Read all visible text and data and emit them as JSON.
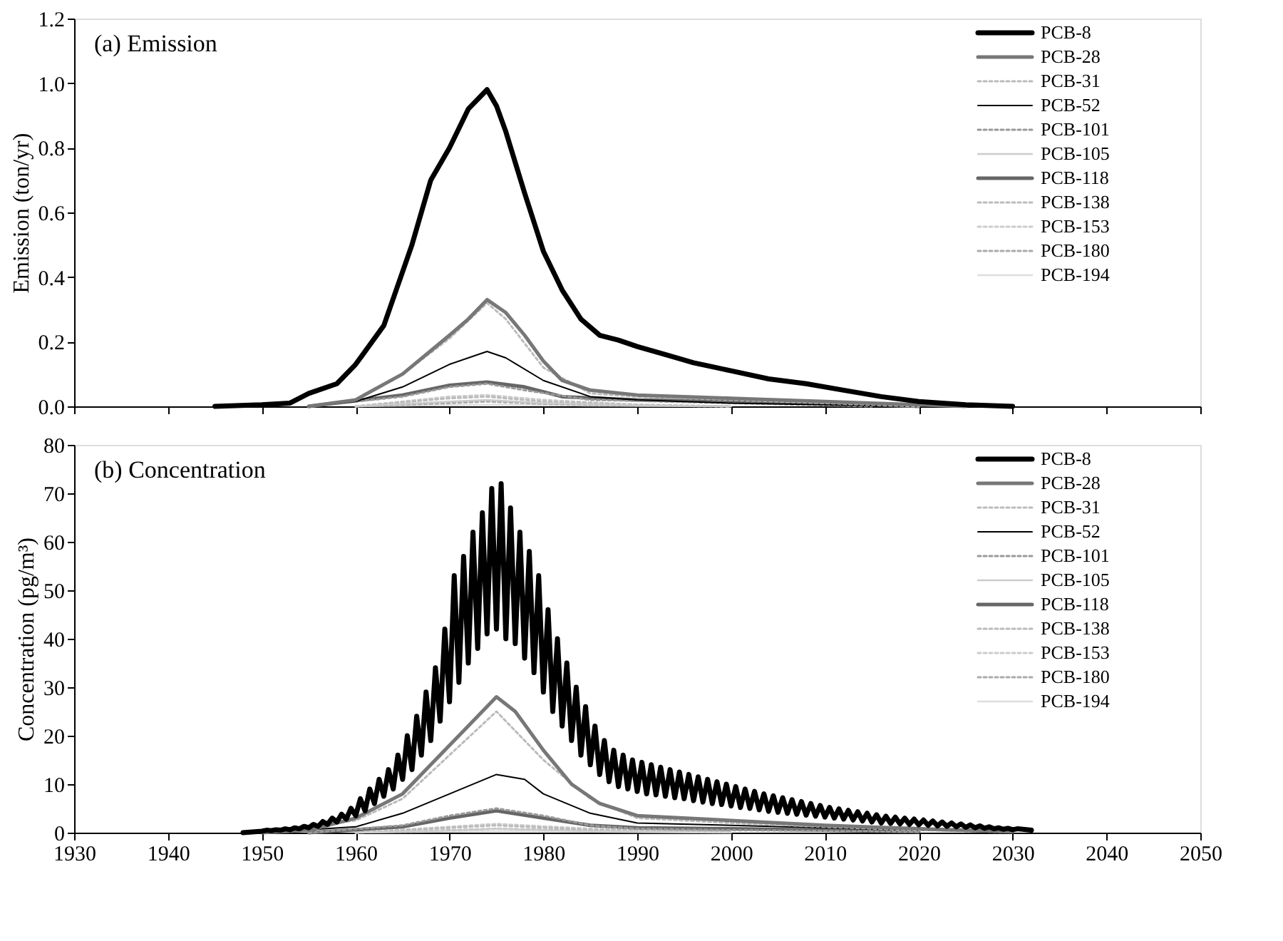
{
  "chart_data": [
    {
      "type": "line",
      "title": "(a) Emission",
      "ylabel": "Emission (ton/yr)",
      "xlim": [
        1930,
        2050
      ],
      "xticks": [
        1930,
        1940,
        1950,
        1960,
        1970,
        1980,
        1990,
        2000,
        2010,
        2020,
        2030,
        2040,
        2050
      ],
      "ylim": [
        0,
        1.2
      ],
      "yticks": [
        {
          "value": 0,
          "label": "0.0"
        },
        {
          "value": 0.2,
          "label": "0.2"
        },
        {
          "value": 0.4,
          "label": "0.4"
        },
        {
          "value": 0.6,
          "label": "0.6"
        },
        {
          "value": 0.8,
          "label": "0.8"
        },
        {
          "value": 1,
          "label": "1.0"
        },
        {
          "value": 1.2,
          "label": "1.2"
        }
      ],
      "tick_labels": "y",
      "legend": "top right",
      "series": [
        {
          "name": "PCB-8",
          "color": "#000000",
          "line_style": "solid",
          "x": [
            1945,
            1950,
            1953,
            1955,
            1958,
            1960,
            1963,
            1966,
            1968,
            1970,
            1972,
            1974,
            1975,
            1976,
            1978,
            1980,
            1982,
            1984,
            1986,
            1988,
            1990,
            1993,
            1996,
            2000,
            2004,
            2008,
            2012,
            2016,
            2020,
            2025,
            2030
          ],
          "values": [
            0,
            0.005,
            0.01,
            0.04,
            0.07,
            0.13,
            0.25,
            0.5,
            0.7,
            0.8,
            0.92,
            0.98,
            0.93,
            0.85,
            0.66,
            0.48,
            0.36,
            0.27,
            0.22,
            0.205,
            0.185,
            0.16,
            0.135,
            0.11,
            0.085,
            0.07,
            0.05,
            0.03,
            0.015,
            0.005,
            0
          ]
        },
        {
          "name": "PCB-28",
          "color": "#777777",
          "line_style": "solid",
          "x": [
            1955,
            1960,
            1965,
            1970,
            1972,
            1974,
            1976,
            1978,
            1980,
            1982,
            1985,
            1990,
            2000,
            2010,
            2020,
            2025
          ],
          "values": [
            0,
            0.02,
            0.1,
            0.22,
            0.27,
            0.33,
            0.29,
            0.22,
            0.14,
            0.08,
            0.05,
            0.035,
            0.025,
            0.015,
            0.005,
            0
          ]
        },
        {
          "name": "PCB-31",
          "color": "#bbbbbb",
          "line_style": "dotted",
          "x": [
            1955,
            1960,
            1965,
            1970,
            1974,
            1976,
            1980,
            1985,
            1990,
            2000,
            2010,
            2020
          ],
          "values": [
            0,
            0.02,
            0.1,
            0.21,
            0.32,
            0.27,
            0.12,
            0.04,
            0.03,
            0.02,
            0.01,
            0
          ]
        },
        {
          "name": "PCB-52",
          "color": "#000000",
          "line_style": "solid",
          "x": [
            1955,
            1960,
            1965,
            1970,
            1974,
            1976,
            1980,
            1985,
            1990,
            2000,
            2010,
            2020
          ],
          "values": [
            0,
            0.015,
            0.06,
            0.13,
            0.17,
            0.15,
            0.08,
            0.03,
            0.02,
            0.01,
            0.005,
            0
          ]
        },
        {
          "name": "PCB-101",
          "color": "#999999",
          "line_style": "dotted",
          "x": [
            1955,
            1965,
            1970,
            1974,
            1978,
            1985,
            2000,
            2015
          ],
          "values": [
            0,
            0.03,
            0.06,
            0.07,
            0.05,
            0.02,
            0.01,
            0
          ]
        },
        {
          "name": "PCB-105",
          "color": "#cccccc",
          "line_style": "solid",
          "x": [
            1960,
            1970,
            1974,
            1980,
            1990,
            2000
          ],
          "values": [
            0,
            0.015,
            0.02,
            0.01,
            0.003,
            0
          ]
        },
        {
          "name": "PCB-118",
          "color": "#666666",
          "line_style": "solid",
          "x": [
            1955,
            1965,
            1970,
            1974,
            1978,
            1982,
            1990,
            2000,
            2010,
            2020
          ],
          "values": [
            0,
            0.035,
            0.065,
            0.075,
            0.06,
            0.03,
            0.02,
            0.015,
            0.01,
            0
          ]
        },
        {
          "name": "PCB-138",
          "color": "#bbbbbb",
          "line_style": "dotted",
          "x": [
            1960,
            1970,
            1974,
            1980,
            1990,
            2000
          ],
          "values": [
            0,
            0.025,
            0.03,
            0.015,
            0.005,
            0
          ]
        },
        {
          "name": "PCB-153",
          "color": "#cccccc",
          "line_style": "dotted",
          "x": [
            1960,
            1970,
            1974,
            1980,
            1990,
            2000
          ],
          "values": [
            0,
            0.03,
            0.035,
            0.02,
            0.005,
            0
          ]
        },
        {
          "name": "PCB-180",
          "color": "#aaaaaa",
          "line_style": "dotted",
          "x": [
            1960,
            1970,
            1974,
            1980,
            1990,
            2000
          ],
          "values": [
            0,
            0.01,
            0.015,
            0.008,
            0.002,
            0
          ]
        },
        {
          "name": "PCB-194",
          "color": "#dddddd",
          "line_style": "solid",
          "x": [
            1960,
            1970,
            1975,
            1985,
            2000
          ],
          "values": [
            0,
            0.004,
            0.005,
            0.002,
            0
          ]
        }
      ]
    },
    {
      "type": "line",
      "title": "(b) Concentration",
      "ylabel": "Concentration (pg/m³)",
      "xlim": [
        1930,
        2050
      ],
      "xticks": [
        {
          "value": 1930,
          "label": "1930"
        },
        {
          "value": 1940,
          "label": "1940"
        },
        {
          "value": 1950,
          "label": "1950"
        },
        {
          "value": 1960,
          "label": "1960"
        },
        {
          "value": 1970,
          "label": "1970"
        },
        {
          "value": 1980,
          "label": "1980"
        },
        {
          "value": 1990,
          "label": "1990"
        },
        {
          "value": 2000,
          "label": "2000"
        },
        {
          "value": 2010,
          "label": "2010"
        },
        {
          "value": 2020,
          "label": "2020"
        },
        {
          "value": 2030,
          "label": "2030"
        },
        {
          "value": 2040,
          "label": "2040"
        },
        {
          "value": 2050,
          "label": "2050"
        }
      ],
      "ylim": [
        0,
        80
      ],
      "yticks": [
        0,
        10,
        20,
        30,
        40,
        50,
        60,
        70,
        80
      ],
      "legend": "top right",
      "series": [
        {
          "name": "PCB-8",
          "color": "#000000",
          "line_style": "solid",
          "x": [
            1948,
            1950,
            1950.5,
            1951,
            1951.5,
            1952,
            1952.5,
            1953,
            1953.5,
            1954,
            1954.5,
            1955,
            1955.5,
            1956,
            1956.5,
            1957,
            1957.5,
            1958,
            1958.5,
            1959,
            1959.5,
            1960,
            1960.5,
            1961,
            1961.5,
            1962,
            1962.5,
            1963,
            1963.5,
            1964,
            1964.5,
            1965,
            1965.5,
            1966,
            1966.5,
            1967,
            1967.5,
            1968,
            1968.5,
            1969,
            1969.5,
            1970,
            1970.5,
            1971,
            1971.5,
            1972,
            1972.5,
            1973,
            1973.5,
            1974,
            1974.5,
            1975,
            1975.5,
            1976,
            1976.5,
            1977,
            1977.5,
            1978,
            1978.5,
            1979,
            1979.5,
            1980,
            1980.5,
            1981,
            1981.5,
            1982,
            1982.5,
            1983,
            1983.5,
            1984,
            1984.5,
            1985,
            1985.5,
            1986,
            1986.5,
            1987,
            1987.5,
            1988,
            1988.5,
            1989,
            1989.5,
            1990,
            1990.5,
            1991,
            1991.5,
            1992,
            1992.5,
            1993,
            1993.5,
            1994,
            1994.5,
            1995,
            1995.5,
            1996,
            1996.5,
            1997,
            1997.5,
            1998,
            1998.5,
            1999,
            1999.5,
            2000,
            2000.5,
            2001,
            2001.5,
            2002,
            2002.5,
            2003,
            2003.5,
            2004,
            2004.5,
            2005,
            2005.5,
            2006,
            2006.5,
            2007,
            2007.5,
            2008,
            2008.5,
            2009,
            2009.5,
            2010,
            2010.5,
            2011,
            2011.5,
            2012,
            2012.5,
            2013,
            2013.5,
            2014,
            2014.5,
            2015,
            2015.5,
            2016,
            2016.5,
            2017,
            2017.5,
            2018,
            2018.5,
            2019,
            2019.5,
            2020,
            2020.5,
            2021,
            2021.5,
            2022,
            2022.5,
            2023,
            2023.5,
            2024,
            2024.5,
            2025,
            2025.5,
            2026,
            2026.5,
            2027,
            2027.5,
            2028,
            2028.5,
            2029,
            2029.5,
            2030,
            2030.5,
            2032
          ],
          "values": [
            0,
            0.3,
            0.5,
            0.4,
            0.6,
            0.5,
            0.8,
            0.6,
            1,
            0.8,
            1.3,
            1,
            1.7,
            1.3,
            2.3,
            1.7,
            3,
            2.2,
            3.8,
            2.8,
            5,
            3.5,
            7,
            4.5,
            9,
            6,
            11,
            7.5,
            13,
            9,
            16,
            11,
            20,
            13,
            24,
            16,
            29,
            19,
            34,
            23,
            42,
            27,
            53,
            31,
            57,
            35,
            62,
            38,
            66,
            41,
            71,
            42,
            72,
            40,
            67,
            39,
            62,
            36,
            58,
            33,
            53,
            29,
            46,
            25,
            40,
            22,
            35,
            19,
            30,
            16,
            26,
            14,
            22,
            12,
            19,
            10.5,
            17,
            9.5,
            16,
            9,
            15,
            8.5,
            14.5,
            8,
            14,
            7.8,
            13.5,
            7.5,
            13,
            7.2,
            12.5,
            7,
            12,
            6.6,
            11.5,
            6.3,
            11,
            6,
            10.5,
            5.8,
            10,
            5.5,
            9.5,
            5.2,
            9,
            5,
            8.5,
            4.7,
            8,
            4.4,
            7.6,
            4.2,
            7.2,
            4,
            6.8,
            3.8,
            6.4,
            3.6,
            6,
            3.4,
            5.6,
            3.2,
            5.2,
            3,
            4.9,
            2.8,
            4.6,
            2.6,
            4.3,
            2.4,
            4,
            2.2,
            3.7,
            2,
            3.4,
            1.9,
            3.2,
            1.8,
            3,
            1.7,
            2.8,
            1.6,
            2.6,
            1.5,
            2.4,
            1.4,
            2.2,
            1.3,
            2,
            1.2,
            1.8,
            1.1,
            1.6,
            1,
            1.4,
            0.9,
            1.2,
            0.8,
            1,
            0.7,
            0.9,
            0.6,
            0.8,
            0.5
          ]
        },
        {
          "name": "PCB-28",
          "color": "#777777",
          "line_style": "solid",
          "x": [
            1950,
            1955,
            1960,
            1965,
            1970,
            1973,
            1975,
            1977,
            1980,
            1983,
            1986,
            1990,
            2000,
            2010,
            2020,
            2030
          ],
          "values": [
            0,
            0.5,
            3,
            8,
            18,
            24,
            28,
            25,
            17,
            10,
            6,
            3.5,
            2.5,
            1.5,
            0.8,
            0.2
          ]
        },
        {
          "name": "PCB-31",
          "color": "#bbbbbb",
          "line_style": "dotted",
          "x": [
            1950,
            1960,
            1965,
            1970,
            1975,
            1980,
            1985,
            1990,
            2000,
            2010,
            2020,
            2030
          ],
          "values": [
            0,
            2.5,
            7,
            16,
            25,
            15,
            7,
            3,
            2,
            1.2,
            0.5,
            0.1
          ]
        },
        {
          "name": "PCB-52",
          "color": "#000000",
          "line_style": "solid",
          "x": [
            1950,
            1960,
            1965,
            1970,
            1975,
            1978,
            1980,
            1985,
            1990,
            2000,
            2010,
            2020,
            2030
          ],
          "values": [
            0,
            1.2,
            4,
            8,
            12,
            11,
            8,
            4,
            2,
            1.5,
            1,
            0.5,
            0.1
          ]
        },
        {
          "name": "PCB-101",
          "color": "#999999",
          "line_style": "dotted",
          "x": [
            1955,
            1965,
            1970,
            1975,
            1980,
            1985,
            1990,
            2000,
            2020
          ],
          "values": [
            0,
            1.5,
            3.5,
            5,
            3.5,
            1.5,
            0.8,
            0.5,
            0.2
          ]
        },
        {
          "name": "PCB-105",
          "color": "#cccccc",
          "line_style": "solid",
          "x": [
            1960,
            1970,
            1975,
            1985,
            2000
          ],
          "values": [
            0,
            0.5,
            0.8,
            0.3,
            0.1
          ]
        },
        {
          "name": "PCB-118",
          "color": "#666666",
          "line_style": "solid",
          "x": [
            1955,
            1965,
            1970,
            1975,
            1980,
            1985,
            1990,
            2000,
            2010,
            2020
          ],
          "values": [
            0,
            1.2,
            3,
            4.5,
            3,
            1.5,
            1,
            0.8,
            0.5,
            0.2
          ]
        },
        {
          "name": "PCB-138",
          "color": "#bbbbbb",
          "line_style": "dotted",
          "x": [
            1960,
            1970,
            1975,
            1985,
            2000
          ],
          "values": [
            0,
            1,
            1.5,
            0.6,
            0.2
          ]
        },
        {
          "name": "PCB-153",
          "color": "#cccccc",
          "line_style": "dotted",
          "x": [
            1960,
            1970,
            1975,
            1985,
            2000
          ],
          "values": [
            0,
            1.2,
            1.8,
            0.8,
            0.3
          ]
        },
        {
          "name": "PCB-180",
          "color": "#aaaaaa",
          "line_style": "dotted",
          "x": [
            1960,
            1970,
            1975,
            1985,
            2000
          ],
          "values": [
            0,
            0.5,
            0.8,
            0.4,
            0.1
          ]
        },
        {
          "name": "PCB-194",
          "color": "#dddddd",
          "line_style": "solid",
          "x": [
            1960,
            1975,
            1990,
            2000
          ],
          "values": [
            0,
            0.3,
            0.1,
            0
          ]
        }
      ]
    }
  ]
}
